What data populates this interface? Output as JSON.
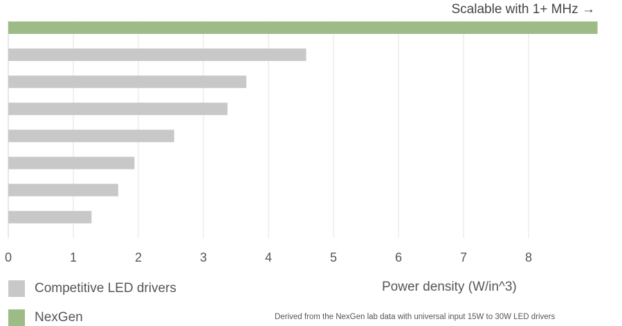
{
  "chart_data": {
    "type": "bar",
    "orientation": "horizontal",
    "xlabel": "Power density (W/in^3)",
    "xlim": [
      0,
      9
    ],
    "x_ticks": [
      0,
      1,
      2,
      3,
      4,
      5,
      6,
      7,
      8
    ],
    "grid": "vertical",
    "annotation": "Scalable with 1+ MHz →",
    "footnote": "Derived from the NexGen lab data with universal input 15W to 30W LED drivers",
    "legend": [
      {
        "name": "Competitive LED drivers",
        "color": "#c8c8c8"
      },
      {
        "name": "NexGen",
        "color": "#9dbb86"
      }
    ],
    "bars": [
      {
        "series": "NexGen",
        "value": 9.06
      },
      {
        "series": "Competitive LED drivers",
        "value": 4.58
      },
      {
        "series": "Competitive LED drivers",
        "value": 3.66
      },
      {
        "series": "Competitive LED drivers",
        "value": 3.37
      },
      {
        "series": "Competitive LED drivers",
        "value": 2.55
      },
      {
        "series": "Competitive LED drivers",
        "value": 1.94
      },
      {
        "series": "Competitive LED drivers",
        "value": 1.69
      },
      {
        "series": "Competitive LED drivers",
        "value": 1.28
      }
    ]
  }
}
